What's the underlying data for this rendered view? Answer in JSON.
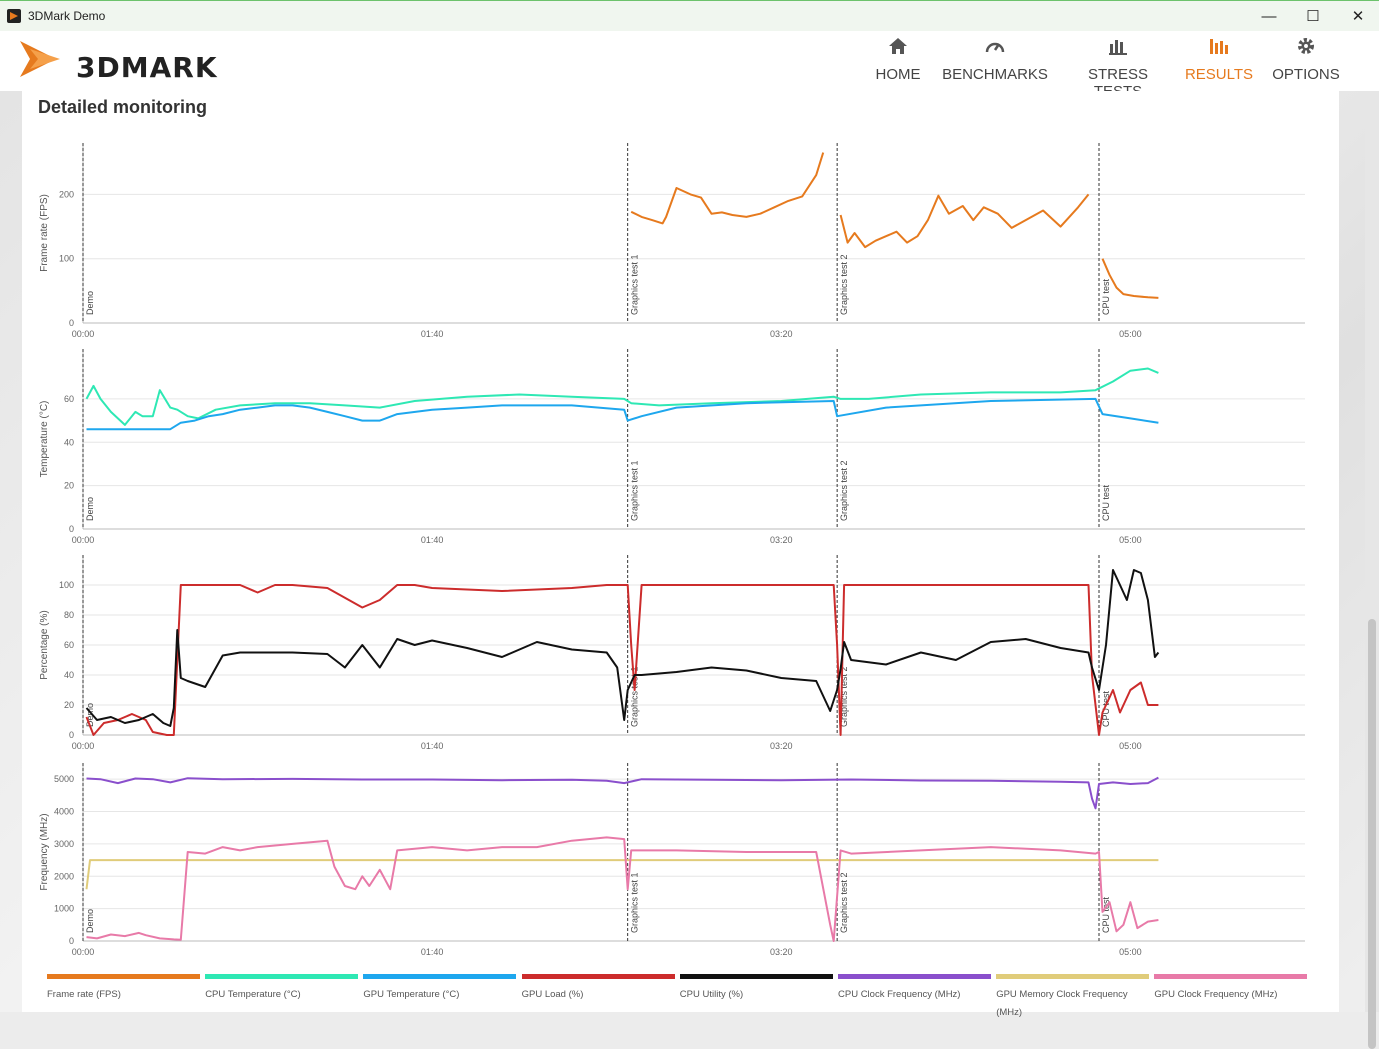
{
  "window": {
    "title": "3DMark Demo",
    "minimize": "—",
    "maximize": "☐",
    "close": "✕"
  },
  "brand": {
    "name": "3DMARK"
  },
  "nav": [
    {
      "label": "HOME",
      "icon": "home-icon"
    },
    {
      "label": "BENCHMARKS",
      "icon": "gauge-icon"
    },
    {
      "label": "STRESS TESTS",
      "icon": "bars-icon"
    },
    {
      "label": "RESULTS",
      "icon": "results-icon"
    },
    {
      "label": "OPTIONS",
      "icon": "gear-icon"
    }
  ],
  "section": {
    "title": "Detailed monitoring"
  },
  "colors": {
    "frame_rate": "#e67a1e",
    "cpu_temp": "#2ee8b4",
    "gpu_temp": "#1ea7ee",
    "gpu_load": "#cc2c2c",
    "cpu_util": "#111111",
    "cpu_clock": "#8a4fcc",
    "gpu_mem_clock": "#e0cc7a",
    "gpu_clock": "#e87aa8",
    "accent": "#e67a1e"
  },
  "chart_data": [
    {
      "type": "line",
      "ylabel": "Frame rate (FPS)",
      "ylim": [
        0,
        280
      ],
      "yticks": [
        0,
        100,
        200
      ],
      "xlim": [
        0,
        350
      ],
      "xticks": [
        0,
        100,
        200,
        300
      ],
      "xticklabels": [
        "00:00",
        "01:40",
        "03:20",
        "05:00"
      ],
      "markers": [
        {
          "x": 0,
          "label": "Demo"
        },
        {
          "x": 156,
          "label": "Graphics test 1"
        },
        {
          "x": 216,
          "label": "Graphics test 2"
        },
        {
          "x": 291,
          "label": "CPU test"
        }
      ],
      "series": [
        {
          "name": "Frame rate (FPS)",
          "color": "#e67a1e",
          "x": [
            157,
            160,
            163,
            166,
            167,
            170,
            174,
            177,
            180,
            183,
            186,
            190,
            194,
            198,
            202,
            206,
            210,
            212
          ],
          "y": [
            173,
            165,
            160,
            155,
            165,
            210,
            200,
            195,
            170,
            172,
            168,
            165,
            170,
            180,
            190,
            197,
            230,
            265
          ]
        },
        {
          "name": "Frame rate (FPS)",
          "color": "#e67a1e",
          "x": [
            217,
            219,
            221,
            224,
            227,
            230,
            233,
            236,
            239,
            242,
            245,
            248,
            252,
            255,
            258,
            262,
            266,
            270,
            275,
            280,
            285,
            288
          ],
          "y": [
            168,
            125,
            140,
            118,
            128,
            135,
            142,
            125,
            135,
            160,
            198,
            170,
            182,
            160,
            180,
            170,
            148,
            160,
            175,
            150,
            180,
            200
          ]
        },
        {
          "name": "Frame rate (FPS)",
          "color": "#e67a1e",
          "x": [
            292,
            294,
            296,
            298,
            301,
            305,
            308
          ],
          "y": [
            100,
            75,
            55,
            45,
            42,
            40,
            39
          ]
        }
      ]
    },
    {
      "type": "line",
      "ylabel": "Temperature (°C)",
      "ylim": [
        0,
        83
      ],
      "yticks": [
        0,
        20,
        40,
        60
      ],
      "xlim": [
        0,
        350
      ],
      "xticks": [
        0,
        100,
        200,
        300
      ],
      "xticklabels": [
        "00:00",
        "01:40",
        "03:20",
        "05:00"
      ],
      "markers": [
        {
          "x": 0,
          "label": "Demo"
        },
        {
          "x": 156,
          "label": "Graphics test 1"
        },
        {
          "x": 216,
          "label": "Graphics test 2"
        },
        {
          "x": 291,
          "label": "CPU test"
        }
      ],
      "series": [
        {
          "name": "CPU Temperature (°C)",
          "color": "#2ee8b4",
          "x": [
            1,
            3,
            5,
            8,
            12,
            15,
            17,
            20,
            22,
            25,
            27,
            30,
            33,
            38,
            45,
            55,
            65,
            75,
            85,
            95,
            110,
            125,
            140,
            155,
            157,
            165,
            180,
            200,
            215,
            217,
            225,
            240,
            260,
            280,
            290,
            295,
            300,
            305,
            308
          ],
          "y": [
            60,
            66,
            60,
            54,
            48,
            54,
            52,
            52,
            64,
            56,
            55,
            52,
            51,
            55,
            57,
            58,
            58,
            57,
            56,
            59,
            61,
            62,
            61,
            60,
            58,
            57,
            58,
            59,
            61,
            60,
            60,
            62,
            63,
            63,
            64,
            68,
            73,
            74,
            72
          ]
        },
        {
          "name": "GPU Temperature (°C)",
          "color": "#1ea7ee",
          "x": [
            1,
            25,
            28,
            32,
            36,
            40,
            45,
            50,
            55,
            60,
            65,
            70,
            75,
            80,
            85,
            90,
            100,
            110,
            120,
            130,
            140,
            155,
            156,
            160,
            170,
            190,
            215,
            216,
            230,
            260,
            290,
            292,
            300,
            308
          ],
          "y": [
            46,
            46,
            49,
            50,
            52,
            53,
            55,
            56,
            57,
            57,
            56,
            54,
            52,
            50,
            50,
            53,
            55,
            56,
            57,
            57,
            57,
            55,
            50,
            52,
            56,
            58,
            59,
            52,
            56,
            59,
            60,
            53,
            51,
            49
          ]
        }
      ]
    },
    {
      "type": "line",
      "ylabel": "Percentage (%)",
      "ylim": [
        0,
        120
      ],
      "yticks": [
        0,
        20,
        40,
        60,
        80,
        100
      ],
      "xlim": [
        0,
        350
      ],
      "xticks": [
        0,
        100,
        200,
        300
      ],
      "xticklabels": [
        "00:00",
        "01:40",
        "03:20",
        "05:00"
      ],
      "markers": [
        {
          "x": 0,
          "label": "Demo"
        },
        {
          "x": 156,
          "label": "Graphics test 1"
        },
        {
          "x": 216,
          "label": "Graphics test 2"
        },
        {
          "x": 291,
          "label": "CPU test"
        }
      ],
      "series": [
        {
          "name": "GPU Load (%)",
          "color": "#cc2c2c",
          "x": [
            1,
            3,
            6,
            10,
            14,
            18,
            20,
            24,
            26,
            28,
            30,
            45,
            50,
            55,
            60,
            70,
            80,
            85,
            90,
            95,
            100,
            120,
            140,
            150,
            154,
            156,
            157,
            158,
            160,
            214,
            215,
            216,
            217,
            218,
            220,
            288,
            289,
            291,
            292,
            295,
            297,
            300,
            303,
            305,
            308
          ],
          "y": [
            12,
            0,
            8,
            10,
            14,
            10,
            2,
            0,
            0,
            100,
            100,
            100,
            95,
            100,
            100,
            98,
            85,
            90,
            100,
            100,
            98,
            96,
            98,
            100,
            100,
            100,
            60,
            30,
            100,
            100,
            100,
            60,
            0,
            100,
            100,
            100,
            40,
            0,
            15,
            30,
            15,
            30,
            35,
            20,
            20
          ]
        },
        {
          "name": "CPU Utility (%)",
          "color": "#111111",
          "x": [
            1,
            4,
            8,
            12,
            16,
            20,
            23,
            25,
            26,
            27,
            28,
            30,
            35,
            40,
            45,
            50,
            60,
            70,
            75,
            80,
            85,
            90,
            95,
            100,
            110,
            120,
            130,
            140,
            150,
            153,
            155,
            156,
            158,
            160,
            170,
            180,
            190,
            200,
            210,
            214,
            216,
            217,
            218,
            220,
            230,
            240,
            250,
            260,
            270,
            280,
            288,
            289,
            291,
            293,
            295,
            297,
            299,
            301,
            303,
            305,
            307,
            308
          ],
          "y": [
            18,
            10,
            12,
            8,
            10,
            14,
            8,
            6,
            18,
            70,
            38,
            36,
            32,
            53,
            55,
            55,
            55,
            54,
            45,
            60,
            45,
            64,
            60,
            63,
            58,
            52,
            62,
            57,
            55,
            45,
            10,
            30,
            40,
            40,
            42,
            45,
            43,
            38,
            36,
            16,
            30,
            44,
            62,
            50,
            47,
            55,
            50,
            62,
            64,
            58,
            55,
            45,
            30,
            60,
            110,
            100,
            90,
            110,
            108,
            90,
            52,
            55
          ]
        }
      ]
    },
    {
      "type": "line",
      "ylabel": "Frequency (MHz)",
      "ylim": [
        0,
        5500
      ],
      "yticks": [
        0,
        1000,
        2000,
        3000,
        4000,
        5000
      ],
      "xlim": [
        0,
        350
      ],
      "xticks": [
        0,
        100,
        200,
        300
      ],
      "xticklabels": [
        "00:00",
        "01:40",
        "03:20",
        "05:00"
      ],
      "markers": [
        {
          "x": 0,
          "label": "Demo"
        },
        {
          "x": 156,
          "label": "Graphics test 1"
        },
        {
          "x": 216,
          "label": "Graphics test 2"
        },
        {
          "x": 291,
          "label": "CPU test"
        }
      ],
      "series": [
        {
          "name": "CPU Clock Frequency (MHz)",
          "color": "#8a4fcc",
          "x": [
            1,
            5,
            10,
            15,
            20,
            25,
            30,
            40,
            60,
            80,
            100,
            120,
            140,
            150,
            155,
            160,
            180,
            200,
            220,
            240,
            260,
            280,
            288,
            289,
            290,
            291,
            295,
            300,
            305,
            308
          ],
          "y": [
            5020,
            5000,
            4880,
            5020,
            5000,
            4900,
            5030,
            5000,
            5010,
            4990,
            4990,
            4970,
            4980,
            4950,
            4880,
            5000,
            4980,
            4970,
            4990,
            4960,
            4950,
            4920,
            4900,
            4400,
            4100,
            4850,
            4900,
            4850,
            4880,
            5050
          ]
        },
        {
          "name": "GPU Memory Clock Frequency (MHz)",
          "color": "#e0cc7a",
          "x": [
            1,
            2,
            308
          ],
          "y": [
            1600,
            2500,
            2500
          ]
        },
        {
          "name": "GPU Clock Frequency (MHz)",
          "color": "#e87aa8",
          "x": [
            1,
            4,
            8,
            12,
            16,
            18,
            22,
            26,
            28,
            30,
            35,
            40,
            45,
            50,
            60,
            70,
            72,
            75,
            78,
            80,
            82,
            85,
            88,
            90,
            100,
            110,
            120,
            130,
            140,
            150,
            155,
            156,
            157,
            160,
            170,
            190,
            210,
            214,
            215,
            217,
            220,
            240,
            260,
            280,
            290,
            291,
            292,
            294,
            296,
            298,
            300,
            302,
            305,
            308
          ],
          "y": [
            120,
            80,
            200,
            150,
            250,
            180,
            80,
            50,
            40,
            2750,
            2700,
            2900,
            2800,
            2900,
            3000,
            3100,
            2300,
            1700,
            1600,
            2000,
            1700,
            2200,
            1600,
            2800,
            2900,
            2800,
            2900,
            2900,
            3100,
            3200,
            3150,
            1600,
            2800,
            2800,
            2800,
            2750,
            2750,
            500,
            0,
            2800,
            2700,
            2800,
            2900,
            2800,
            2700,
            2750,
            900,
            1200,
            300,
            500,
            1200,
            400,
            600,
            650
          ]
        }
      ]
    }
  ],
  "legend": [
    {
      "label": "Frame rate (FPS)",
      "color": "#e67a1e"
    },
    {
      "label": "CPU Temperature (°C)",
      "color": "#2ee8b4"
    },
    {
      "label": "GPU Temperature (°C)",
      "color": "#1ea7ee"
    },
    {
      "label": "GPU Load (%)",
      "color": "#cc2c2c"
    },
    {
      "label": "CPU Utility (%)",
      "color": "#111111"
    },
    {
      "label": "CPU Clock Frequency (MHz)",
      "color": "#8a4fcc"
    },
    {
      "label": "GPU Memory Clock Frequency (MHz)",
      "color": "#e0cc7a"
    },
    {
      "label": "GPU Clock Frequency (MHz)",
      "color": "#e87aa8"
    }
  ]
}
